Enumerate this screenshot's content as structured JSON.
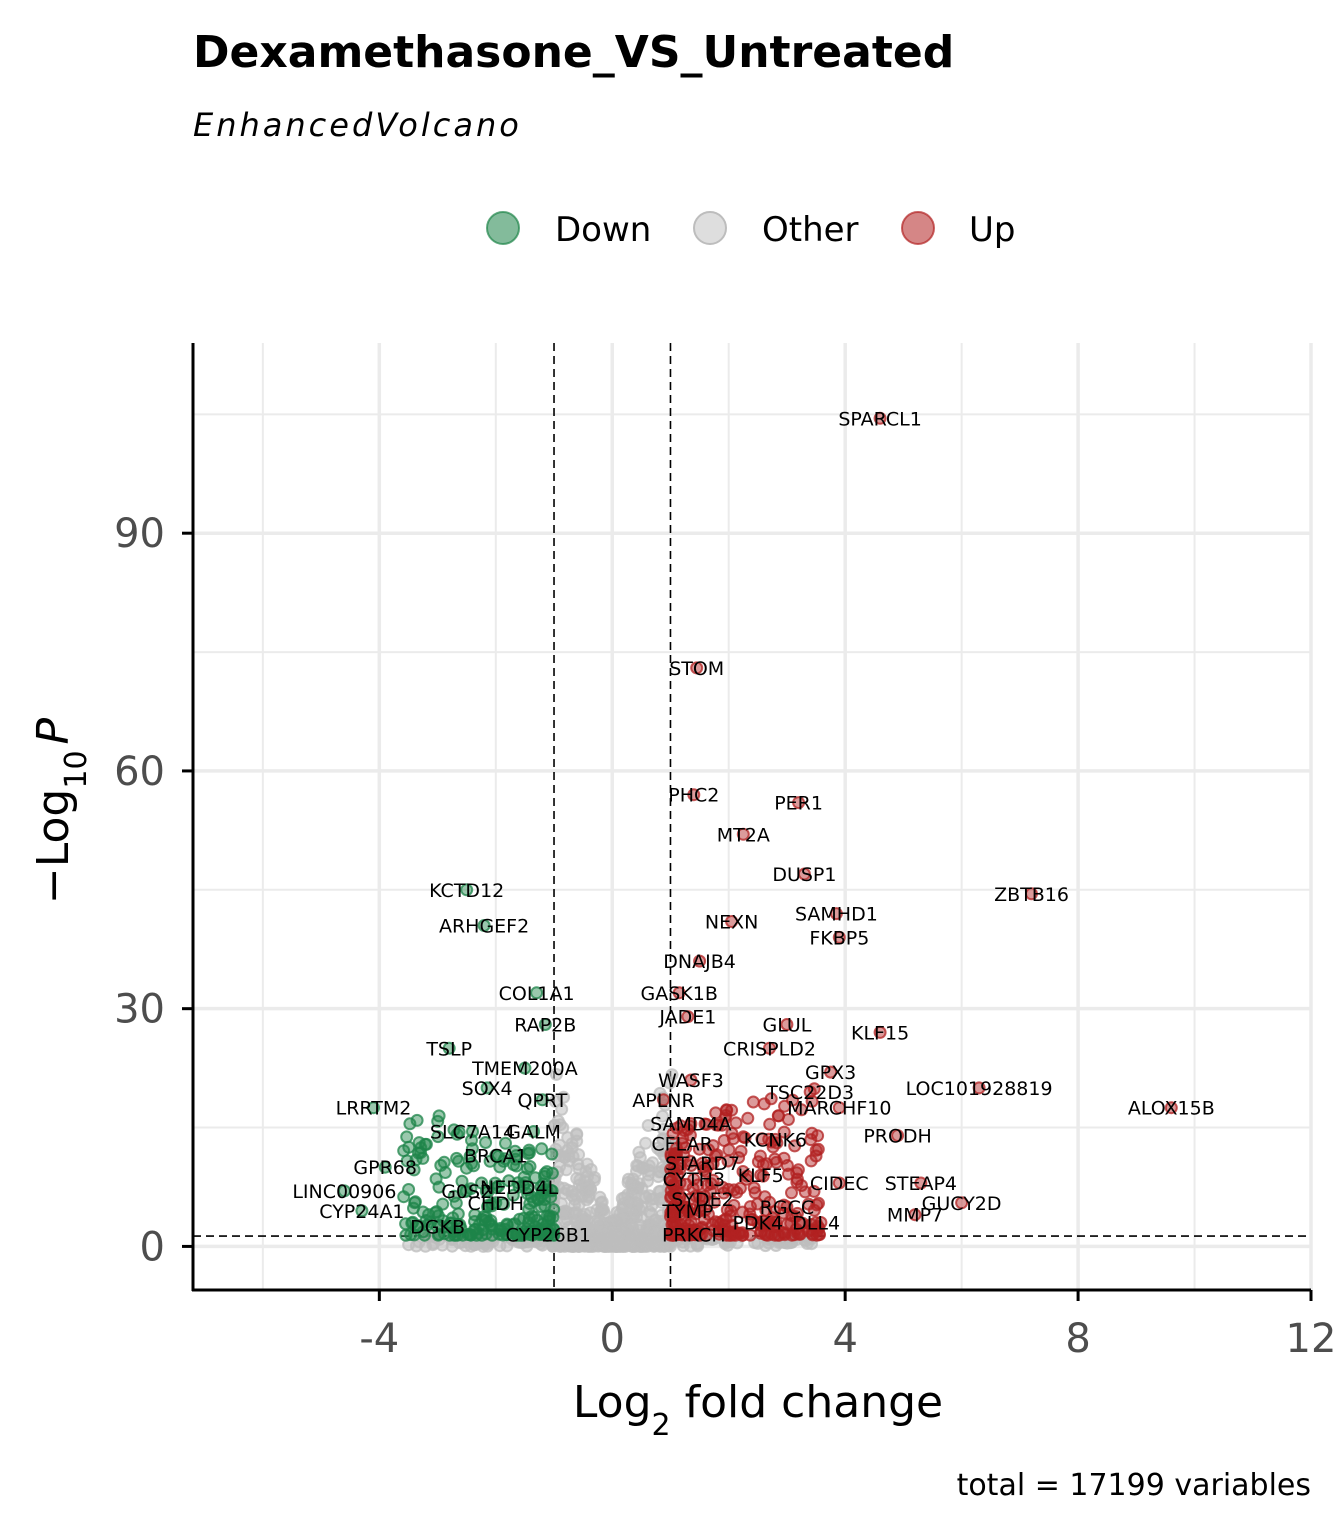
{
  "chart_data": {
    "type": "scatter",
    "title": "Dexamethasone_VS_Untreated",
    "subtitle": "EnhancedVolcano",
    "xlabel_main": "Log",
    "xlabel_sub": "2",
    "xlabel_tail": " fold change",
    "ylabel_prefix": "−Log",
    "ylabel_sub": "10",
    "ylabel_italic": "P",
    "caption": "total = 17199 variables",
    "xlim": [
      -7.2,
      12
    ],
    "ylim": [
      -5.5,
      114
    ],
    "x_ticks": [
      -4,
      0,
      4,
      8,
      12
    ],
    "y_ticks": [
      0,
      30,
      60,
      90
    ],
    "fc_cutoff": 1,
    "p_cutoff_log10": 1.3,
    "legend": [
      {
        "label": "Down",
        "color": "#1e8449"
      },
      {
        "label": "Other",
        "color": "#c0c0c0"
      },
      {
        "label": "Up",
        "color": "#b22222"
      }
    ],
    "colors": {
      "down": "#1e8449",
      "other": "#bdbdbd",
      "up": "#b22222",
      "grid": "#ebebeb"
    },
    "labeled_genes": [
      {
        "gene": "SPARCL1",
        "x": 4.6,
        "y": 104.5
      },
      {
        "gene": "STOM",
        "x": 1.45,
        "y": 73
      },
      {
        "gene": "PHC2",
        "x": 1.4,
        "y": 57
      },
      {
        "gene": "PER1",
        "x": 3.2,
        "y": 56
      },
      {
        "gene": "MT2A",
        "x": 2.25,
        "y": 52
      },
      {
        "gene": "DUSP1",
        "x": 3.3,
        "y": 47
      },
      {
        "gene": "ZBTB16",
        "x": 7.2,
        "y": 44.5
      },
      {
        "gene": "KCTD12",
        "x": -2.5,
        "y": 45
      },
      {
        "gene": "SAMHD1",
        "x": 3.85,
        "y": 42
      },
      {
        "gene": "NEXN",
        "x": 2.05,
        "y": 41
      },
      {
        "gene": "ARHGEF2",
        "x": -2.2,
        "y": 40.5
      },
      {
        "gene": "FKBP5",
        "x": 3.9,
        "y": 39
      },
      {
        "gene": "DNAJB4",
        "x": 1.5,
        "y": 36
      },
      {
        "gene": "GASK1B",
        "x": 1.15,
        "y": 32
      },
      {
        "gene": "COL1A1",
        "x": -1.3,
        "y": 32
      },
      {
        "gene": "JADE1",
        "x": 1.3,
        "y": 29
      },
      {
        "gene": "RAP2B",
        "x": -1.15,
        "y": 28
      },
      {
        "gene": "GLUL",
        "x": 3.0,
        "y": 28
      },
      {
        "gene": "KLF15",
        "x": 4.6,
        "y": 27
      },
      {
        "gene": "TSLP",
        "x": -2.8,
        "y": 25
      },
      {
        "gene": "CRISPLD2",
        "x": 2.7,
        "y": 25
      },
      {
        "gene": "TMEM200A",
        "x": -1.5,
        "y": 22.5
      },
      {
        "gene": "GPX3",
        "x": 3.75,
        "y": 22
      },
      {
        "gene": "WASF3",
        "x": 1.35,
        "y": 21
      },
      {
        "gene": "SOX4",
        "x": -2.15,
        "y": 20
      },
      {
        "gene": "LOC101928819",
        "x": 6.3,
        "y": 20
      },
      {
        "gene": "TSC22D3",
        "x": 3.4,
        "y": 19.5
      },
      {
        "gene": "APLNR",
        "x": 0.88,
        "y": 18.5
      },
      {
        "gene": "QPRT",
        "x": -1.2,
        "y": 18.5
      },
      {
        "gene": "ALOX15B",
        "x": 9.6,
        "y": 17.5
      },
      {
        "gene": "LRRTM2",
        "x": -4.1,
        "y": 17.5
      },
      {
        "gene": "MARCHF10",
        "x": 3.9,
        "y": 17.5
      },
      {
        "gene": "SAMD4A",
        "x": 1.35,
        "y": 15.5
      },
      {
        "gene": "SLC7A14",
        "x": -2.4,
        "y": 14.5
      },
      {
        "gene": "GALM",
        "x": -1.35,
        "y": 14.5
      },
      {
        "gene": "PRODH",
        "x": 4.9,
        "y": 14
      },
      {
        "gene": "KCNK6",
        "x": 2.8,
        "y": 13.5
      },
      {
        "gene": "CFLAR",
        "x": 1.2,
        "y": 13
      },
      {
        "gene": "BRCA1",
        "x": -2.0,
        "y": 11.5
      },
      {
        "gene": "GPR68",
        "x": -3.9,
        "y": 10
      },
      {
        "gene": "STARD7",
        "x": 1.55,
        "y": 10.5
      },
      {
        "gene": "KLF5",
        "x": 2.55,
        "y": 9
      },
      {
        "gene": "CYTH3",
        "x": 1.4,
        "y": 8.5
      },
      {
        "gene": "CIDEC",
        "x": 3.9,
        "y": 8
      },
      {
        "gene": "STEAP4",
        "x": 5.3,
        "y": 8
      },
      {
        "gene": "NEDD4L",
        "x": -1.6,
        "y": 7.5
      },
      {
        "gene": "LINC00906",
        "x": -4.6,
        "y": 7
      },
      {
        "gene": "G0S2",
        "x": -2.5,
        "y": 7
      },
      {
        "gene": "SYDE2",
        "x": 1.55,
        "y": 6
      },
      {
        "gene": "GUCY2D",
        "x": 6.0,
        "y": 5.5
      },
      {
        "gene": "CHDH",
        "x": -2.0,
        "y": 5.5
      },
      {
        "gene": "CYP24A1",
        "x": -4.3,
        "y": 4.5
      },
      {
        "gene": "RGCC",
        "x": 3.0,
        "y": 5
      },
      {
        "gene": "TYMP",
        "x": 1.3,
        "y": 4.5
      },
      {
        "gene": "MMP7",
        "x": 5.2,
        "y": 4
      },
      {
        "gene": "PDK4",
        "x": 2.5,
        "y": 3
      },
      {
        "gene": "DLL4",
        "x": 3.5,
        "y": 3
      },
      {
        "gene": "DGKB",
        "x": -3.0,
        "y": 2.5
      },
      {
        "gene": "CYP26B1",
        "x": -1.1,
        "y": 1.5
      },
      {
        "gene": "PRKCH",
        "x": 1.4,
        "y": 1.5
      }
    ]
  }
}
